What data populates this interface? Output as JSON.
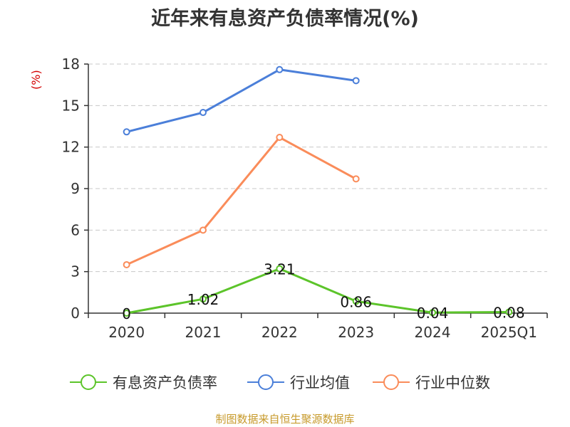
{
  "chart_data": {
    "type": "line",
    "title": "近年来有息资产负债率情况(%)",
    "ylabel": "(%)",
    "categories": [
      "2020",
      "2021",
      "2022",
      "2023",
      "2024",
      "2025Q1"
    ],
    "ylim": [
      0,
      18
    ],
    "yticks": [
      "0",
      "3",
      "6",
      "9",
      "12",
      "15",
      "18"
    ],
    "grid": true,
    "legend_position": "bottom",
    "series": [
      {
        "name": "有息资产负债率",
        "color": "#5cc42a",
        "values": [
          0,
          1.02,
          3.21,
          0.86,
          0.04,
          0.08
        ],
        "labels": [
          "0",
          "1.02",
          "3.21",
          "0.86",
          "0.04",
          "0.08"
        ]
      },
      {
        "name": "行业均值",
        "color": "#4b7fd9",
        "values": [
          13.1,
          14.5,
          17.6,
          16.8,
          null,
          null
        ]
      },
      {
        "name": "行业中位数",
        "color": "#fa8c5a",
        "values": [
          3.5,
          6.0,
          12.7,
          9.7,
          null,
          null
        ]
      }
    ]
  },
  "source_note": "制图数据来自恒生聚源数据库"
}
